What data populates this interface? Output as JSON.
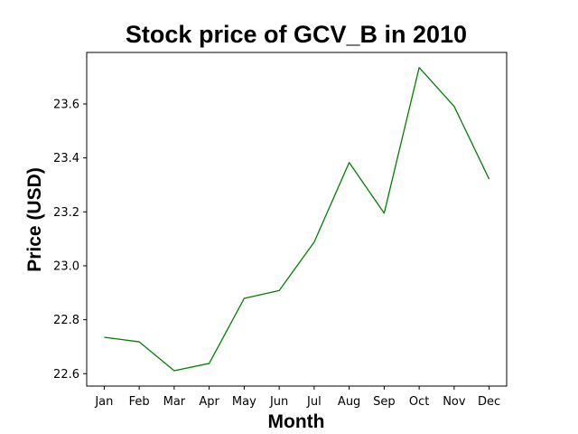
{
  "chart_data": {
    "type": "line",
    "title": "Stock price of GCV_B in 2010",
    "xlabel": "Month",
    "ylabel": "Price (USD)",
    "categories": [
      "Jan",
      "Feb",
      "Mar",
      "Apr",
      "May",
      "Jun",
      "Jul",
      "Aug",
      "Sep",
      "Oct",
      "Nov",
      "Dec"
    ],
    "series": [
      {
        "color": "#008000",
        "values": [
          22.735,
          22.718,
          22.611,
          22.638,
          22.879,
          22.908,
          23.088,
          23.383,
          23.195,
          23.735,
          23.591,
          23.321
        ]
      }
    ],
    "yticks": [
      "22.6",
      "22.8",
      "23.0",
      "23.2",
      "23.4",
      "23.6"
    ],
    "ylim": [
      22.554,
      23.791
    ],
    "grid": false
  }
}
